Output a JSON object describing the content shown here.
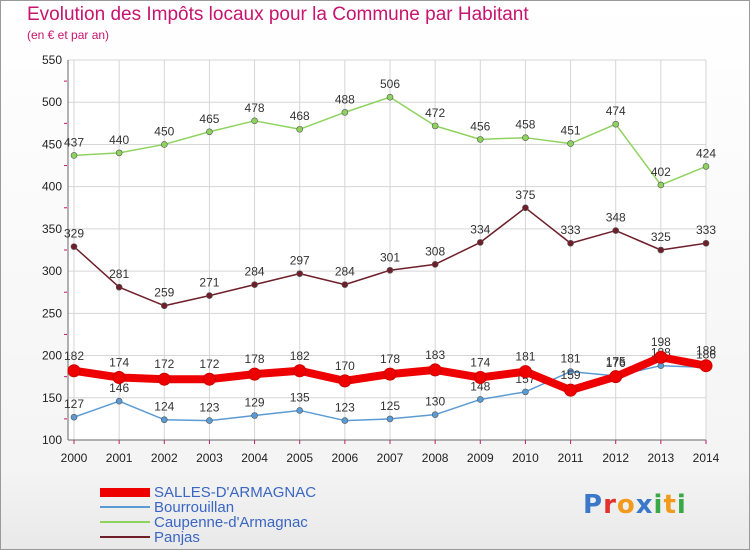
{
  "chart_data": {
    "type": "line",
    "title": "Evolution des Impôts locaux pour la Commune par Habitant",
    "subtitle": "(en € et par an)",
    "x": [
      "2000",
      "2001",
      "2002",
      "2003",
      "2004",
      "2005",
      "2006",
      "2007",
      "2008",
      "2009",
      "2010",
      "2011",
      "2012",
      "2013",
      "2014"
    ],
    "yticks": [
      100,
      150,
      200,
      250,
      300,
      350,
      400,
      450,
      500,
      550
    ],
    "ylim": [
      100,
      550
    ],
    "grid": true,
    "series": [
      {
        "name": "Panjas",
        "color": "#6e1f2a",
        "values": [
          329,
          281,
          259,
          271,
          284,
          297,
          284,
          301,
          308,
          334,
          375,
          333,
          348,
          325,
          333
        ],
        "labels": [
          "329",
          "281",
          "259",
          "271",
          "284",
          "297",
          "284",
          "301",
          "308",
          "334",
          "375",
          "333",
          "348",
          "325",
          "333"
        ]
      },
      {
        "name": "Caupenne-d'Armagnac",
        "color": "#8fd35f",
        "values": [
          437,
          440,
          450,
          465,
          478,
          468,
          488,
          506,
          472,
          456,
          458,
          451,
          474,
          402,
          424
        ],
        "labels": [
          "437",
          "440",
          "450",
          "465",
          "478",
          "468",
          "488",
          "506",
          "472",
          "456",
          "458",
          "451",
          "474",
          "402",
          "424"
        ]
      },
      {
        "name": "Bourrouillan",
        "color": "#5b9bd5",
        "values": [
          127,
          146,
          124,
          123,
          129,
          135,
          123,
          125,
          130,
          148,
          157,
          181,
          176,
          188,
          186
        ],
        "labels": [
          "127",
          "146",
          "124",
          "123",
          "129",
          "135",
          "123",
          "125",
          "130",
          "148",
          "157",
          "181",
          "176",
          "188",
          "186"
        ]
      },
      {
        "name": "SALLES-D'ARMAGNAC",
        "color": "#ee0000",
        "values": [
          182,
          174,
          172,
          172,
          178,
          182,
          170,
          178,
          183,
          174,
          181,
          159,
          175,
          198,
          188
        ],
        "labels": [
          "182",
          "174",
          "172",
          "172",
          "178",
          "182",
          "170",
          "178",
          "183",
          "174",
          "181",
          "159",
          "175",
          "198",
          "188"
        ]
      }
    ]
  },
  "legend": [
    {
      "name": "SALLES-D'ARMAGNAC",
      "color": "#ee0000",
      "weight": 9
    },
    {
      "name": "Bourrouillan",
      "color": "#5b9bd5",
      "weight": 2
    },
    {
      "name": "Caupenne-d'Armagnac",
      "color": "#8fd35f",
      "weight": 2
    },
    {
      "name": "Panjas",
      "color": "#6e1f2a",
      "weight": 2
    }
  ],
  "logo": {
    "letters": [
      "P",
      "r",
      "o",
      "x",
      "i",
      "t",
      "i"
    ],
    "colors": [
      "#3b78c9",
      "#e0332d",
      "#f29a1c",
      "#3b78c9",
      "#39a845",
      "#f29a1c",
      "#39a845"
    ]
  }
}
